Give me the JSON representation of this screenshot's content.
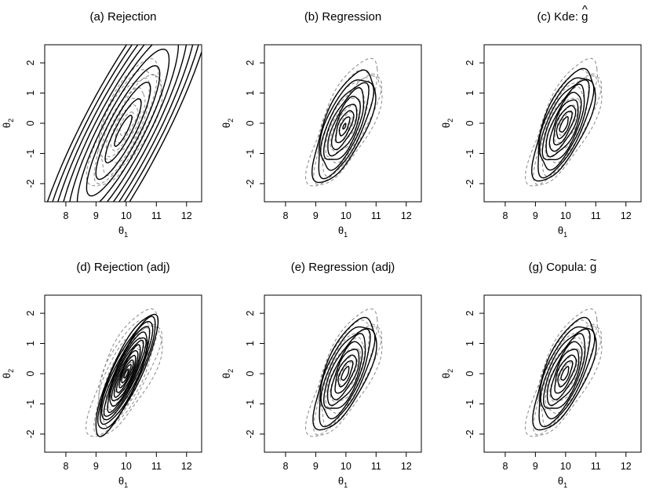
{
  "figure": {
    "x_axis_label": "θ",
    "x_axis_subscript": "1",
    "y_axis_label": "θ",
    "y_axis_subscript": "2"
  },
  "chart_data": [
    {
      "type": "contour",
      "panel": "a",
      "title": "(a) Rejection",
      "xlabel": "θ1",
      "ylabel": "θ2",
      "xlim": [
        7.3,
        12.5
      ],
      "ylim": [
        -2.6,
        2.6
      ],
      "xticks": [
        "8",
        "9",
        "10",
        "11",
        "12"
      ],
      "yticks": [
        "-2",
        "-1",
        "0",
        "1",
        "2"
      ],
      "solid": {
        "center": [
          9.9,
          -0.25
        ],
        "sx": 0.9,
        "sy": 1.6,
        "rho": 0.87,
        "levels": 10,
        "rmin": 0.32,
        "rmax": 3.4
      },
      "dashed": {
        "center": [
          10.0,
          0.0
        ],
        "sx": 0.55,
        "sy": 0.95,
        "rho": 0.7,
        "levels": 8,
        "rmin": 0.4,
        "rmax": 2.2,
        "wiggle": 0.07
      }
    },
    {
      "type": "contour",
      "panel": "b",
      "title": "(b) Regression",
      "xlabel": "θ1",
      "ylabel": "θ2",
      "xlim": [
        7.3,
        12.5
      ],
      "ylim": [
        -2.6,
        2.6
      ],
      "xticks": [
        "8",
        "9",
        "10",
        "11",
        "12"
      ],
      "yticks": [
        "-2",
        "-1",
        "0",
        "1",
        "2"
      ],
      "solid": {
        "center": [
          9.95,
          -0.1
        ],
        "sx": 0.5,
        "sy": 0.9,
        "rho": 0.68,
        "levels": 9,
        "rmin": 0.1,
        "rmax": 2.05,
        "wiggle": 0.05
      },
      "dashed": {
        "center": [
          10.0,
          0.0
        ],
        "sx": 0.55,
        "sy": 0.95,
        "rho": 0.7,
        "levels": 8,
        "rmin": 0.4,
        "rmax": 2.2,
        "wiggle": 0.08
      }
    },
    {
      "type": "contour",
      "panel": "c",
      "title": "(c) Kde: ",
      "title_symbol": "g",
      "title_accent": "^",
      "xlabel": "θ1",
      "ylabel": "θ2",
      "xlim": [
        7.3,
        12.5
      ],
      "ylim": [
        -2.6,
        2.6
      ],
      "xticks": [
        "8",
        "9",
        "10",
        "11",
        "12"
      ],
      "yticks": [
        "-2",
        "-1",
        "0",
        "1",
        "2"
      ],
      "solid": {
        "center": [
          9.95,
          -0.05
        ],
        "sx": 0.5,
        "sy": 0.9,
        "rho": 0.68,
        "levels": 9,
        "rmin": 0.28,
        "rmax": 2.05,
        "wiggle": 0.05
      },
      "dashed": {
        "center": [
          10.0,
          0.0
        ],
        "sx": 0.55,
        "sy": 0.95,
        "rho": 0.7,
        "levels": 8,
        "rmin": 0.4,
        "rmax": 2.2,
        "wiggle": 0.08
      }
    },
    {
      "type": "contour",
      "panel": "d",
      "title": "(d) Rejection (adj)",
      "xlabel": "θ1",
      "ylabel": "θ2",
      "xlim": [
        7.3,
        12.5
      ],
      "ylim": [
        -2.6,
        2.6
      ],
      "xticks": [
        "8",
        "9",
        "10",
        "11",
        "12"
      ],
      "yticks": [
        "-2",
        "-1",
        "0",
        "1",
        "2"
      ],
      "solid": {
        "center": [
          10.0,
          0.0
        ],
        "sx": 0.42,
        "sy": 0.82,
        "rho": 0.85,
        "levels": 13,
        "rmin": 0.18,
        "rmax": 2.45,
        "wiggle": 0.03
      },
      "dashed": {
        "center": [
          10.0,
          0.0
        ],
        "sx": 0.55,
        "sy": 0.95,
        "rho": 0.7,
        "levels": 8,
        "rmin": 0.4,
        "rmax": 2.2,
        "wiggle": 0.08
      }
    },
    {
      "type": "contour",
      "panel": "e",
      "title": "(e) Regression (adj)",
      "xlabel": "θ1",
      "ylabel": "θ2",
      "xlim": [
        7.3,
        12.5
      ],
      "ylim": [
        -2.6,
        2.6
      ],
      "xticks": [
        "8",
        "9",
        "10",
        "11",
        "12"
      ],
      "yticks": [
        "-2",
        "-1",
        "0",
        "1",
        "2"
      ],
      "solid": {
        "center": [
          9.98,
          0.0
        ],
        "sx": 0.5,
        "sy": 0.9,
        "rho": 0.68,
        "levels": 9,
        "rmin": 0.25,
        "rmax": 2.05,
        "wiggle": 0.05
      },
      "dashed": {
        "center": [
          10.0,
          0.0
        ],
        "sx": 0.55,
        "sy": 0.95,
        "rho": 0.7,
        "levels": 8,
        "rmin": 0.4,
        "rmax": 2.2,
        "wiggle": 0.08
      }
    },
    {
      "type": "contour",
      "panel": "g",
      "title": "(g) Copula: ",
      "title_symbol": "g",
      "title_accent": "~",
      "xlabel": "θ1",
      "ylabel": "θ2",
      "xlim": [
        7.3,
        12.5
      ],
      "ylim": [
        -2.6,
        2.6
      ],
      "xticks": [
        "8",
        "9",
        "10",
        "11",
        "12"
      ],
      "yticks": [
        "-2",
        "-1",
        "0",
        "1",
        "2"
      ],
      "solid": {
        "center": [
          9.98,
          0.0
        ],
        "sx": 0.5,
        "sy": 0.9,
        "rho": 0.68,
        "levels": 9,
        "rmin": 0.25,
        "rmax": 2.05,
        "wiggle": 0.05
      },
      "dashed": {
        "center": [
          10.0,
          0.0
        ],
        "sx": 0.55,
        "sy": 0.95,
        "rho": 0.7,
        "levels": 8,
        "rmin": 0.4,
        "rmax": 2.2,
        "wiggle": 0.08
      }
    }
  ]
}
